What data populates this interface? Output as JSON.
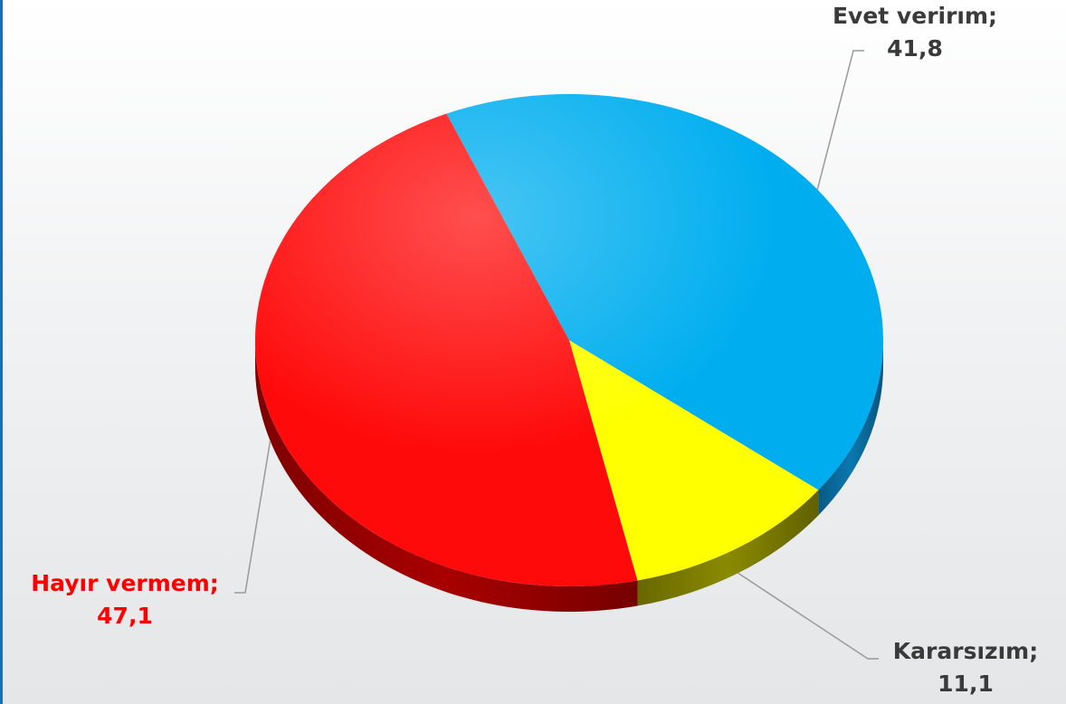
{
  "chart_data": {
    "type": "pie",
    "title": "",
    "slices": [
      {
        "label": "Evet verirım;",
        "value": "41,8",
        "number": 41.8,
        "color": "#00aeef",
        "side": "#0a78b0",
        "label_color": "#3a3a3a"
      },
      {
        "label": "Kararsızım;",
        "value": "11,1",
        "number": 11.1,
        "color": "#ffff00",
        "side": "#8a8a00",
        "label_color": "#3a3a3a"
      },
      {
        "label": "Hayır vermem;",
        "value": "47,1",
        "number": 47.1,
        "color": "#ff0a0a",
        "side": "#a80000",
        "label_color": "#ff0000"
      }
    ],
    "legend": "none",
    "data_labels": "outside with leader lines"
  }
}
